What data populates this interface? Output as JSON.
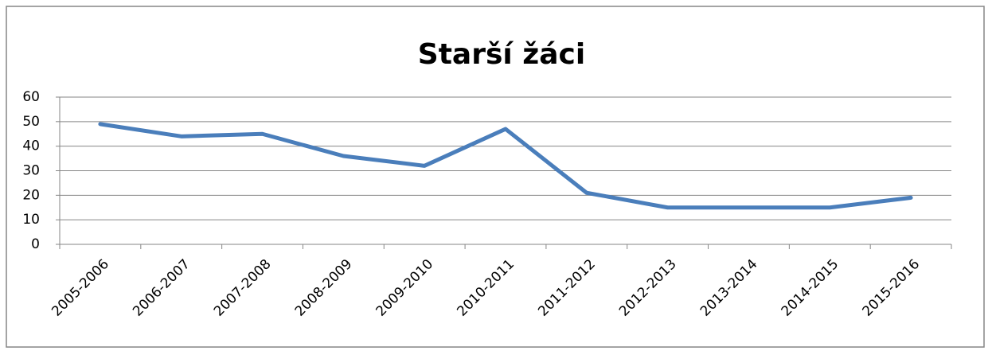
{
  "chart_data": {
    "type": "line",
    "title": "Starší žáci",
    "categories": [
      "2005-2006",
      "2006-2007",
      "2007-2008",
      "2008-2009",
      "2009-2010",
      "2010-2011",
      "2011-2012",
      "2012-2013",
      "2013-2014",
      "2014-2015",
      "2015-2016"
    ],
    "values": [
      49,
      44,
      45,
      36,
      32,
      47,
      21,
      15,
      15,
      15,
      19
    ],
    "color": "#4a7ebb",
    "ylim": [
      0,
      60
    ],
    "yticks": [
      0,
      10,
      20,
      30,
      40,
      50,
      60
    ],
    "grid": true
  }
}
